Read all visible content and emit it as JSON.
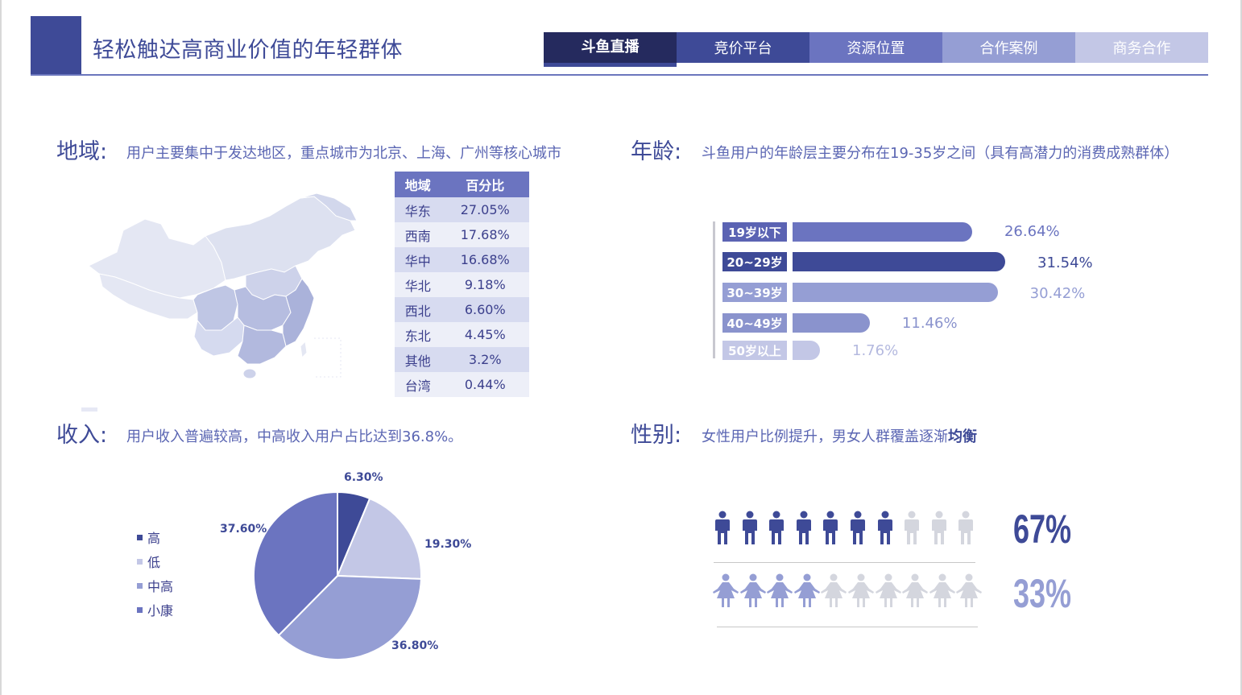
{
  "header": {
    "title": "轻松触达高商业价值的年轻群体",
    "tabs": [
      {
        "label": "斗鱼直播",
        "color": "#252a5e",
        "active": true
      },
      {
        "label": "竞价平台",
        "color": "#3e4a97",
        "active": false
      },
      {
        "label": "资源位置",
        "color": "#6b74c0",
        "active": false
      },
      {
        "label": "合作案例",
        "color": "#959ed4",
        "active": false
      },
      {
        "label": "商务合作",
        "color": "#c3c7e6",
        "active": false
      }
    ]
  },
  "region": {
    "label": "地域:",
    "desc": "用户主要集中于发达地区，重点城市为北京、上海、广州等核心城市",
    "table_headers": [
      "地域",
      "百分比"
    ],
    "rows": [
      {
        "name": "华东",
        "pct": "27.05%"
      },
      {
        "name": "西南",
        "pct": "17.68%"
      },
      {
        "name": "华中",
        "pct": "16.68%"
      },
      {
        "name": "华北",
        "pct": "9.18%"
      },
      {
        "name": "西北",
        "pct": "6.60%"
      },
      {
        "name": "东北",
        "pct": "4.45%"
      },
      {
        "name": "其他",
        "pct": "3.2%"
      },
      {
        "name": "台湾",
        "pct": "0.44%"
      }
    ]
  },
  "age": {
    "label": "年龄:",
    "desc": "斗鱼用户的年龄层主要分布在19-35岁之间（具有高潜力的消费成熟群体）",
    "groups": [
      {
        "label": "19岁以下",
        "value": 26.64,
        "text": "26.64%",
        "color": "#6b74c0",
        "label_color": "#5b63b3",
        "text_color": "#6b74c0"
      },
      {
        "label": "20~29岁",
        "value": 31.54,
        "text": "31.54%",
        "color": "#3e4a97",
        "label_color": "#3e4a97",
        "text_color": "#3e4a97"
      },
      {
        "label": "30~39岁",
        "value": 30.42,
        "text": "30.42%",
        "color": "#959ed4",
        "label_color": "#959ed4",
        "text_color": "#959ed4"
      },
      {
        "label": "40~49岁",
        "value": 11.46,
        "text": "11.46%",
        "color": "#8a93cd",
        "label_color": "#8a93cd",
        "text_color": "#8a93cd"
      },
      {
        "label": "50岁以上",
        "value": 1.76,
        "text": "1.76%",
        "color": "#c3c7e6",
        "label_color": "#c3c7e6",
        "text_color": "#b4b9df"
      }
    ]
  },
  "income": {
    "label": "收入:",
    "desc": "用户收入普遍较高，中高收入用户占比达到36.8%。"
  },
  "chart_data": {
    "type": "pie",
    "title": "",
    "categories": [
      "高",
      "低",
      "中高",
      "小康"
    ],
    "values": [
      6.3,
      19.3,
      36.8,
      37.6
    ],
    "labels": [
      "6.30%",
      "19.30%",
      "36.80%",
      "37.60%"
    ],
    "colors": [
      "#3e4a97",
      "#c3c7e6",
      "#959ed4",
      "#6b74c0"
    ],
    "legend_position": "left"
  },
  "gender": {
    "label": "性别:",
    "desc_prefix": "女性用户比例提升，男女人群覆盖逐渐",
    "desc_bold": "均衡",
    "male": {
      "pct": "67%",
      "filled": 7,
      "total": 10,
      "color": "#3e4a97",
      "empty_color": "#d4d6de"
    },
    "female": {
      "pct": "33%",
      "filled": 4,
      "total": 10,
      "color": "#959ed4",
      "empty_color": "#d4d6de"
    }
  }
}
